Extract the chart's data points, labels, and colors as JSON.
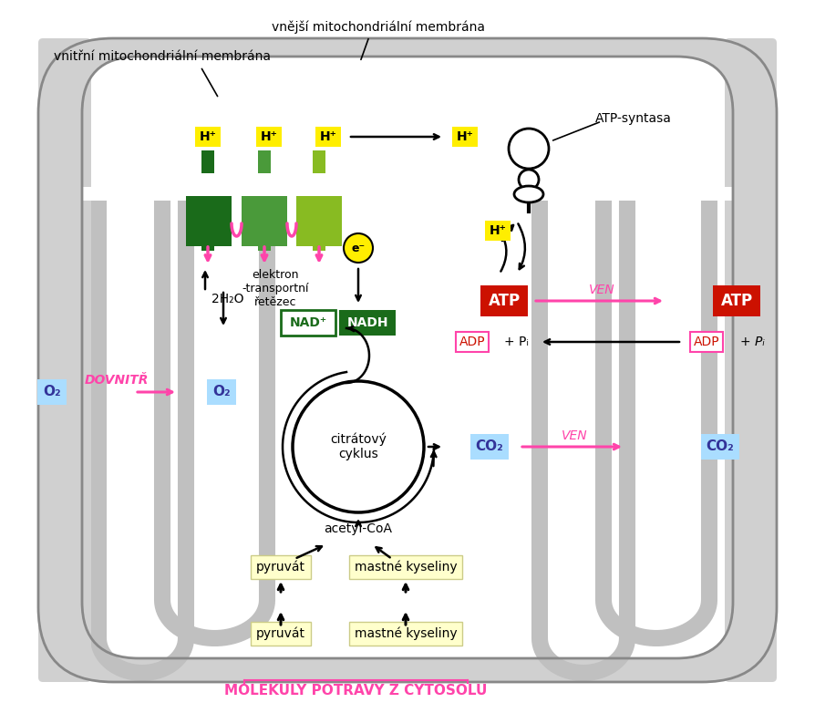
{
  "bg_color": "#ffffff",
  "mito_outer_fill": "#d0d0d0",
  "mito_inner_fill": "#ffffff",
  "fold_color": "#c0c0c0",
  "yellow_bg": "#ffee00",
  "light_yellow_bg": "#ffffcc",
  "cyan_bg": "#aaddff",
  "red_bg": "#cc1100",
  "pink_color": "#ff44aa",
  "green_dark": "#1a6b1a",
  "green_mid": "#4a9a3a",
  "green_light": "#88bb22",
  "dark_blue_text": "#333399",
  "black": "#000000",
  "white": "#ffffff",
  "label_outer_mem": "vnější mitochondriální memvbrána",
  "label_inner_mem": "vnitřní mitochondriální memvbrána",
  "label_atp_syntasa": "ATP-syntasa",
  "label_elektron": "elektron\n-transportní\nřetězec",
  "label_citrate": "citrátový\ncyklus",
  "label_acetyl": "acetyl-CoA",
  "label_pyruvat": "pyruvát",
  "label_mastne": "mastné kyseliny",
  "label_molekuly": "MOLEKULY POTRAVY Z CYTOSOLU",
  "label_dovnitr": "DOVNITŘ",
  "label_ven": "VEN",
  "label_2h2o": "2H₂O"
}
